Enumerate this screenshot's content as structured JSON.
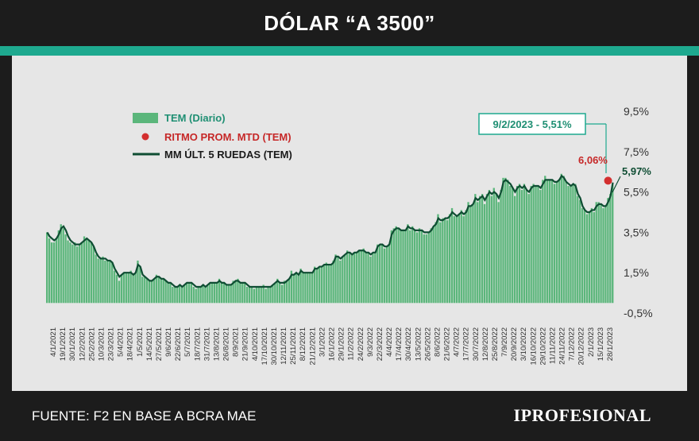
{
  "header": {
    "title": "DÓLAR “A 3500”"
  },
  "footer": {
    "source": "FUENTE: F2 EN BASE A BCRA MAE",
    "logo": "IPROFESIONAL"
  },
  "colors": {
    "bar": "#5bb67b",
    "ma_line": "#0f4d33",
    "dot": "#d32f2f",
    "accent": "#1ea98f"
  },
  "chart_data": {
    "type": "bar",
    "ylim": [
      -0.5,
      9.5
    ],
    "y_ticks": [
      "9,5%",
      "7,5%",
      "5,5%",
      "3,5%",
      "1,5%",
      "-0,5%"
    ],
    "x_tick_labels": [
      "4/1/2021",
      "19/1/2021",
      "30/1/2021",
      "12/2/2021",
      "25/2/2021",
      "10/3/2021",
      "23/3/2021",
      "5/4/2021",
      "18/4/2021",
      "1/5/2021",
      "14/5/2021",
      "27/5/2021",
      "9/6/2021",
      "22/6/2021",
      "5/7/2021",
      "18/7/2021",
      "31/7/2021",
      "13/8/2021",
      "26/8/2021",
      "8/9/2021",
      "21/9/2021",
      "4/10/2021",
      "17/10/2021",
      "30/10/2021",
      "12/11/2021",
      "25/11/2021",
      "8/12/2021",
      "21/12/2021",
      "3/1/2022",
      "16/1/2022",
      "29/1/2022",
      "11/2/2022",
      "24/2/2022",
      "9/3/2022",
      "22/3/2022",
      "4/4/2022",
      "17/4/2022",
      "30/4/2022",
      "13/5/2022",
      "26/5/2022",
      "8/6/2022",
      "21/6/2022",
      "4/7/2022",
      "17/7/2022",
      "30/7/2022",
      "12/8/2022",
      "25/8/2022",
      "7/9/2022",
      "20/9/2022",
      "3/10/2022",
      "16/10/2022",
      "29/10/2022",
      "11/11/2022",
      "24/11/2022",
      "7/12/2022",
      "20/12/2022",
      "2/1/2023",
      "15/1/2023",
      "28/1/2023"
    ],
    "legend": [
      {
        "key": "bar",
        "label": "TEM (Diario)"
      },
      {
        "key": "dot",
        "label": "RITMO PROM. MTD (TEM)"
      },
      {
        "key": "line",
        "label": "MM ÚLT. 5 RUEDAS (TEM)"
      }
    ],
    "annotations": {
      "callout": "9/2/2023 - 5,51%",
      "dot_value": "6,06%",
      "line_value": "5,97%"
    },
    "series": [
      {
        "name": "TEM (Diario)",
        "values": [
          3.5,
          3.2,
          3.0,
          3.0,
          3.2,
          3.6,
          3.9,
          3.7,
          3.4,
          3.1,
          3.0,
          2.9,
          3.0,
          2.8,
          2.9,
          3.0,
          3.3,
          3.2,
          3.1,
          3.0,
          2.8,
          2.4,
          2.2,
          2.2,
          2.3,
          2.1,
          2.1,
          2.1,
          2.0,
          1.6,
          1.4,
          1.1,
          1.4,
          1.5,
          1.5,
          1.5,
          1.6,
          1.4,
          1.5,
          2.1,
          1.8,
          1.3,
          1.3,
          1.2,
          1.1,
          1.1,
          1.2,
          1.4,
          1.3,
          1.2,
          1.2,
          1.1,
          1.0,
          1.0,
          0.8,
          0.8,
          0.8,
          0.9,
          0.8,
          0.9,
          1.0,
          1.0,
          1.0,
          0.8,
          0.7,
          0.8,
          0.8,
          0.9,
          0.8,
          0.9,
          1.0,
          1.0,
          1.0,
          1.0,
          1.2,
          1.0,
          1.0,
          0.9,
          0.9,
          0.9,
          1.1,
          1.1,
          1.2,
          1.0,
          1.0,
          1.0,
          0.8,
          0.8,
          0.8,
          0.7,
          0.8,
          0.8,
          0.8,
          0.9,
          0.7,
          0.8,
          0.8,
          0.9,
          1.0,
          1.2,
          1.0,
          0.9,
          1.1,
          1.1,
          1.2,
          1.6,
          1.4,
          1.5,
          1.4,
          1.7,
          1.5,
          1.5,
          1.5,
          1.5,
          1.5,
          1.8,
          1.7,
          1.8,
          1.8,
          1.9,
          2.0,
          1.9,
          1.9,
          2.1,
          2.4,
          2.3,
          2.1,
          2.3,
          2.4,
          2.6,
          2.5,
          2.4,
          2.5,
          2.5,
          2.6,
          2.6,
          2.7,
          2.5,
          2.5,
          2.3,
          2.5,
          2.5,
          2.9,
          2.9,
          2.9,
          2.7,
          2.8,
          2.9,
          3.6,
          3.7,
          3.8,
          3.7,
          3.6,
          3.6,
          3.6,
          3.9,
          3.6,
          3.8,
          3.6,
          3.5,
          3.7,
          3.6,
          3.4,
          3.4,
          3.5,
          3.7,
          3.8,
          4.0,
          4.4,
          4.0,
          4.2,
          4.2,
          4.1,
          4.4,
          4.7,
          4.3,
          4.3,
          4.4,
          4.6,
          4.3,
          4.6,
          5.0,
          4.8,
          4.9,
          5.4,
          5.0,
          5.3,
          5.4,
          4.9,
          5.4,
          5.6,
          5.3,
          5.7,
          5.4,
          5.0,
          5.6,
          6.2,
          6.2,
          6.1,
          5.8,
          5.7,
          5.3,
          5.8,
          5.9,
          5.6,
          5.9,
          5.6,
          5.4,
          5.8,
          5.9,
          5.8,
          5.8,
          5.6,
          6.1,
          6.3,
          6.1,
          6.1,
          6.1,
          5.9,
          6.0,
          6.1,
          6.4,
          6.3,
          6.0,
          5.8,
          5.8,
          5.9,
          5.9,
          5.3,
          5.1,
          4.7,
          4.6,
          4.4,
          4.5,
          4.7,
          4.5,
          5.0,
          5.0,
          4.9,
          4.7,
          4.8,
          5.2,
          5.4,
          5.9
        ],
        "note": "values in % TEM"
      },
      {
        "name": "MM ÚLT. 5 RUEDAS (TEM)",
        "values": [
          3.5,
          3.3,
          3.2,
          3.1,
          3.2,
          3.4,
          3.7,
          3.8,
          3.6,
          3.3,
          3.1,
          3.0,
          2.9,
          2.9,
          2.9,
          3.0,
          3.1,
          3.2,
          3.1,
          3.0,
          2.8,
          2.5,
          2.3,
          2.2,
          2.2,
          2.2,
          2.1,
          2.1,
          2.0,
          1.7,
          1.5,
          1.3,
          1.4,
          1.5,
          1.5,
          1.5,
          1.5,
          1.4,
          1.5,
          1.9,
          1.8,
          1.4,
          1.3,
          1.2,
          1.1,
          1.1,
          1.2,
          1.3,
          1.3,
          1.2,
          1.2,
          1.1,
          1.0,
          1.0,
          0.9,
          0.8,
          0.8,
          0.9,
          0.8,
          0.9,
          1.0,
          1.0,
          1.0,
          0.9,
          0.8,
          0.8,
          0.8,
          0.9,
          0.8,
          0.9,
          1.0,
          1.0,
          1.0,
          1.0,
          1.1,
          1.0,
          1.0,
          0.9,
          0.9,
          0.9,
          1.0,
          1.1,
          1.1,
          1.0,
          1.0,
          1.0,
          0.9,
          0.8,
          0.8,
          0.8,
          0.8,
          0.8,
          0.8,
          0.8,
          0.8,
          0.8,
          0.8,
          0.9,
          1.0,
          1.1,
          1.0,
          1.0,
          1.0,
          1.1,
          1.2,
          1.4,
          1.4,
          1.5,
          1.4,
          1.6,
          1.5,
          1.5,
          1.5,
          1.5,
          1.5,
          1.7,
          1.7,
          1.8,
          1.8,
          1.9,
          1.9,
          1.9,
          1.9,
          2.0,
          2.3,
          2.3,
          2.2,
          2.3,
          2.4,
          2.5,
          2.5,
          2.4,
          2.5,
          2.5,
          2.6,
          2.6,
          2.6,
          2.5,
          2.5,
          2.4,
          2.5,
          2.5,
          2.8,
          2.9,
          2.9,
          2.8,
          2.8,
          2.9,
          3.4,
          3.6,
          3.7,
          3.7,
          3.6,
          3.6,
          3.6,
          3.8,
          3.7,
          3.7,
          3.6,
          3.6,
          3.6,
          3.6,
          3.5,
          3.5,
          3.5,
          3.6,
          3.8,
          3.9,
          4.2,
          4.1,
          4.1,
          4.2,
          4.2,
          4.3,
          4.5,
          4.4,
          4.3,
          4.4,
          4.5,
          4.4,
          4.5,
          4.8,
          4.8,
          4.9,
          5.2,
          5.1,
          5.2,
          5.3,
          5.1,
          5.3,
          5.5,
          5.4,
          5.5,
          5.4,
          5.2,
          5.5,
          6.0,
          6.1,
          6.0,
          5.9,
          5.7,
          5.5,
          5.7,
          5.8,
          5.7,
          5.8,
          5.6,
          5.5,
          5.7,
          5.8,
          5.8,
          5.8,
          5.7,
          5.9,
          6.1,
          6.1,
          6.1,
          6.1,
          6.0,
          6.0,
          6.1,
          6.3,
          6.2,
          6.0,
          5.9,
          5.8,
          5.9,
          5.8,
          5.4,
          5.2,
          4.8,
          4.6,
          4.5,
          4.5,
          4.6,
          4.6,
          4.8,
          4.9,
          4.9,
          4.8,
          4.8,
          5.0,
          5.3,
          5.97
        ]
      }
    ],
    "mtd_point": {
      "value": 6.06
    },
    "grid": false,
    "legend_position": "top-left"
  }
}
